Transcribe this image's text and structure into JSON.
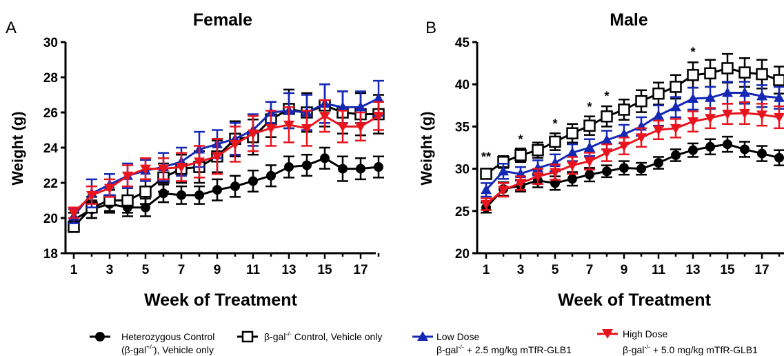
{
  "chart_data": [
    {
      "type": "line",
      "panel_letter": "A",
      "title": "Female",
      "xlabel": "Week of Treatment",
      "ylabel": "Weight (g)",
      "xlim": [
        1,
        18
      ],
      "ylim": [
        18,
        30
      ],
      "x_ticks": [
        1,
        3,
        5,
        7,
        9,
        11,
        13,
        15,
        17
      ],
      "y_ticks": [
        18,
        20,
        22,
        24,
        26,
        28,
        30
      ],
      "x": [
        1,
        2,
        3,
        4,
        5,
        6,
        7,
        8,
        9,
        10,
        11,
        12,
        13,
        14,
        15,
        16,
        17,
        18
      ],
      "series": [
        {
          "key": "het",
          "color": "#000000",
          "marker": "circle",
          "values": [
            19.9,
            20.5,
            20.8,
            20.6,
            20.6,
            21.4,
            21.3,
            21.3,
            21.6,
            21.8,
            22.1,
            22.4,
            22.9,
            23.0,
            23.4,
            22.8,
            22.8,
            22.9
          ],
          "errors": [
            0.4,
            0.5,
            0.5,
            0.5,
            0.5,
            0.5,
            0.5,
            0.5,
            0.6,
            0.6,
            0.6,
            0.6,
            0.6,
            0.6,
            0.6,
            0.7,
            0.6,
            0.6
          ]
        },
        {
          "key": "ctrl",
          "color": "#000000",
          "marker": "square",
          "values": [
            19.5,
            20.6,
            21.0,
            21.0,
            21.5,
            22.3,
            22.8,
            22.9,
            23.5,
            24.5,
            24.6,
            25.6,
            26.2,
            26.0,
            26.4,
            26.0,
            25.9,
            25.9
          ],
          "errors": [
            0.3,
            0.6,
            0.6,
            0.7,
            0.7,
            0.8,
            0.8,
            0.9,
            0.9,
            1.0,
            1.0,
            1.0,
            1.1,
            1.1,
            1.2,
            1.2,
            1.2,
            1.1
          ]
        },
        {
          "key": "low",
          "color": "#1428b4",
          "marker": "triangle-up",
          "values": [
            20.1,
            21.4,
            21.9,
            22.4,
            22.7,
            22.9,
            23.2,
            23.9,
            24.2,
            24.5,
            25.0,
            26.0,
            26.1,
            26.0,
            26.5,
            26.3,
            26.3,
            26.8
          ],
          "errors": [
            0.4,
            0.8,
            0.6,
            0.7,
            0.6,
            0.8,
            0.8,
            1.0,
            0.8,
            0.9,
            0.9,
            0.6,
            1.0,
            1.0,
            1.1,
            0.9,
            0.9,
            1.0
          ]
        },
        {
          "key": "high",
          "color": "#e8141e",
          "marker": "triangle-down",
          "values": [
            20.3,
            21.3,
            21.7,
            22.4,
            22.8,
            22.8,
            22.9,
            23.2,
            23.5,
            24.2,
            24.8,
            25.1,
            25.3,
            25.1,
            25.8,
            25.2,
            25.2,
            25.8
          ],
          "errors": [
            0.3,
            0.5,
            0.5,
            0.6,
            0.6,
            0.6,
            0.8,
            0.9,
            1.0,
            1.0,
            1.0,
            1.0,
            1.0,
            1.0,
            0.9,
            0.9,
            0.8,
            0.8
          ]
        }
      ],
      "annotations": []
    },
    {
      "type": "line",
      "panel_letter": "B",
      "title": "Male",
      "xlabel": "Week of Treatment",
      "ylabel": "Weight (g)",
      "xlim": [
        1,
        18
      ],
      "ylim": [
        20,
        45
      ],
      "x_ticks": [
        1,
        3,
        5,
        7,
        9,
        11,
        13,
        15,
        17
      ],
      "y_ticks": [
        20,
        25,
        30,
        35,
        40,
        45
      ],
      "x": [
        1,
        2,
        3,
        4,
        5,
        6,
        7,
        8,
        9,
        10,
        11,
        12,
        13,
        14,
        15,
        16,
        17,
        18
      ],
      "series": [
        {
          "key": "het",
          "color": "#000000",
          "marker": "circle",
          "values": [
            25.4,
            27.6,
            28.0,
            28.6,
            28.3,
            28.8,
            29.3,
            29.7,
            30.1,
            30.0,
            30.7,
            31.6,
            32.2,
            32.6,
            32.9,
            32.3,
            31.8,
            31.3
          ],
          "errors": [
            0.6,
            0.8,
            0.7,
            0.8,
            0.8,
            0.8,
            0.8,
            0.7,
            0.8,
            0.7,
            0.7,
            0.7,
            0.8,
            0.9,
            0.9,
            0.9,
            0.9,
            0.9
          ]
        },
        {
          "key": "ctrl",
          "color": "#000000",
          "marker": "square",
          "values": [
            29.4,
            30.8,
            31.6,
            32.2,
            33.2,
            34.2,
            35.1,
            36.2,
            37.0,
            38.0,
            38.9,
            39.7,
            41.1,
            41.3,
            41.9,
            41.4,
            41.2,
            40.5
          ],
          "errors": [
            0.6,
            0.7,
            0.8,
            0.9,
            1.0,
            1.1,
            1.1,
            1.2,
            1.2,
            1.3,
            1.3,
            1.4,
            1.5,
            1.6,
            1.7,
            1.7,
            1.7,
            1.6
          ]
        },
        {
          "key": "low",
          "color": "#1428b4",
          "marker": "triangle-up",
          "values": [
            27.5,
            29.7,
            29.4,
            30.1,
            30.7,
            31.9,
            32.5,
            33.4,
            34.1,
            35.0,
            36.3,
            37.3,
            38.3,
            38.4,
            39.0,
            39.0,
            38.6,
            38.4
          ],
          "errors": [
            0.8,
            0.9,
            0.8,
            0.9,
            1.0,
            1.0,
            1.0,
            1.1,
            1.1,
            1.1,
            1.2,
            1.2,
            1.3,
            1.3,
            1.3,
            1.3,
            1.3,
            1.3
          ]
        },
        {
          "key": "high",
          "color": "#e8141e",
          "marker": "triangle-down",
          "values": [
            25.8,
            27.5,
            28.3,
            29.1,
            29.6,
            30.4,
            30.9,
            31.9,
            32.7,
            33.7,
            34.6,
            34.8,
            35.6,
            36.0,
            36.5,
            36.6,
            36.4,
            36.1
          ],
          "errors": [
            0.7,
            0.8,
            0.8,
            0.9,
            0.9,
            1.0,
            1.0,
            1.0,
            1.0,
            1.1,
            1.1,
            1.1,
            1.2,
            1.2,
            1.2,
            1.3,
            1.3,
            1.3
          ]
        }
      ],
      "annotations": [
        {
          "x": 1,
          "y": 31.4,
          "text": "**"
        },
        {
          "x": 3,
          "y": 33.5,
          "text": "*"
        },
        {
          "x": 5,
          "y": 35.3,
          "text": "*"
        },
        {
          "x": 7,
          "y": 37.3,
          "text": "*"
        },
        {
          "x": 8,
          "y": 38.6,
          "text": "*"
        },
        {
          "x": 13,
          "y": 43.8,
          "text": "*"
        }
      ]
    }
  ],
  "legend": {
    "placement": "bottom",
    "items": [
      {
        "key": "het",
        "marker": "circle",
        "color": "#000000",
        "line1": "Heterozygous Control",
        "line2_prefix": "(β-gal",
        "line2_sup": "+/-",
        "line2_suffix": "), Vehicle only"
      },
      {
        "key": "ctrl",
        "marker": "square",
        "color": "#000000",
        "line1_prefix": "β-gal",
        "line1_sup": "-/-",
        "line1_suffix": " Control, Vehicle only"
      },
      {
        "key": "low",
        "marker": "triangle-up",
        "color": "#1428b4",
        "line1": "Low Dose",
        "line2_prefix": "β-gal",
        "line2_sup": "-/-",
        "line2_suffix": " + 2.5 mg/kg mTfR-GLB1"
      },
      {
        "key": "high",
        "marker": "triangle-down",
        "color": "#e8141e",
        "line1": "High Dose",
        "line2_prefix": "β-gal",
        "line2_sup": "-/-",
        "line2_suffix": " + 5.0 mg/kg mTfR-GLB1"
      }
    ]
  }
}
